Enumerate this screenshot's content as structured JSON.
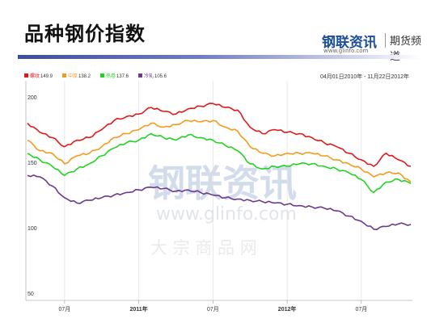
{
  "page": {
    "title": "品种钢价指数"
  },
  "logo": {
    "cn": "钢联资讯",
    "right": "期货频道",
    "url": "www.glinfo.com"
  },
  "watermark": {
    "cn": "钢联资讯",
    "url": "www.glinfo.com",
    "sub": "大 宗 商 品 网"
  },
  "colors": {
    "rule": "#3c4da3",
    "logo": "#1b4f9a"
  },
  "chart_data": {
    "type": "line",
    "date_range": "04月01日2010年 - 11月22日2012年",
    "ylim": [
      50,
      200
    ],
    "y_ticks": [
      200,
      150,
      100,
      50
    ],
    "x_ticks": [
      "07月",
      "2011年",
      "07月",
      "2012年",
      "07月"
    ],
    "x_domain": [
      "2010-04",
      "2012-11"
    ],
    "grid": "vertical",
    "legend_position": "top-left",
    "series": [
      {
        "name": "螺纹",
        "last": "149.9",
        "color": "#e01a1a",
        "x": [
          "2010-04",
          "2010-05",
          "2010-06",
          "2010-07",
          "2010-08",
          "2010-09",
          "2010-10",
          "2010-11",
          "2010-12",
          "2011-01",
          "2011-02",
          "2011-03",
          "2011-04",
          "2011-05",
          "2011-06",
          "2011-07",
          "2011-08",
          "2011-09",
          "2011-10",
          "2011-11",
          "2011-12",
          "2012-01",
          "2012-02",
          "2012-03",
          "2012-04",
          "2012-05",
          "2012-06",
          "2012-07",
          "2012-08",
          "2012-09",
          "2012-10",
          "2012-11"
        ],
        "values": [
          183,
          176,
          172,
          165,
          170,
          172,
          178,
          185,
          188,
          190,
          195,
          192,
          190,
          194,
          196,
          198,
          195,
          193,
          180,
          175,
          178,
          176,
          175,
          172,
          168,
          165,
          160,
          155,
          150,
          160,
          155,
          150
        ]
      },
      {
        "name": "中厚",
        "last": "138.2",
        "color": "#f39b1c",
        "x": [
          "2010-04",
          "2010-05",
          "2010-06",
          "2010-07",
          "2010-08",
          "2010-09",
          "2010-10",
          "2010-11",
          "2010-12",
          "2011-01",
          "2011-02",
          "2011-03",
          "2011-04",
          "2011-05",
          "2011-06",
          "2011-07",
          "2011-08",
          "2011-09",
          "2011-10",
          "2011-11",
          "2011-12",
          "2012-01",
          "2012-02",
          "2012-03",
          "2012-04",
          "2012-05",
          "2012-06",
          "2012-07",
          "2012-08",
          "2012-09",
          "2012-10",
          "2012-11"
        ],
        "values": [
          170,
          162,
          160,
          152,
          158,
          160,
          165,
          172,
          175,
          178,
          183,
          180,
          182,
          185,
          184,
          185,
          180,
          177,
          165,
          160,
          158,
          160,
          160,
          160,
          158,
          155,
          152,
          148,
          142,
          145,
          145,
          138
        ]
      },
      {
        "name": "热卷",
        "last": "137.6",
        "color": "#22d322",
        "x": [
          "2010-04",
          "2010-05",
          "2010-06",
          "2010-07",
          "2010-08",
          "2010-09",
          "2010-10",
          "2010-11",
          "2010-12",
          "2011-01",
          "2011-02",
          "2011-03",
          "2011-04",
          "2011-05",
          "2011-06",
          "2011-07",
          "2011-08",
          "2011-09",
          "2011-10",
          "2011-11",
          "2011-12",
          "2012-01",
          "2012-02",
          "2012-03",
          "2012-04",
          "2012-05",
          "2012-06",
          "2012-07",
          "2012-08",
          "2012-09",
          "2012-10",
          "2012-11"
        ],
        "values": [
          160,
          155,
          150,
          143,
          148,
          152,
          158,
          164,
          168,
          170,
          175,
          172,
          170,
          174,
          172,
          170,
          166,
          162,
          152,
          148,
          150,
          150,
          152,
          152,
          150,
          148,
          145,
          140,
          130,
          138,
          140,
          137
        ]
      },
      {
        "name": "冷轧",
        "last": "105.6",
        "color": "#6b3a8c",
        "x": [
          "2010-04",
          "2010-05",
          "2010-06",
          "2010-07",
          "2010-08",
          "2010-09",
          "2010-10",
          "2010-11",
          "2010-12",
          "2011-01",
          "2011-02",
          "2011-03",
          "2011-04",
          "2011-05",
          "2011-06",
          "2011-07",
          "2011-08",
          "2011-09",
          "2011-10",
          "2011-11",
          "2011-12",
          "2012-01",
          "2012-02",
          "2012-03",
          "2012-04",
          "2012-05",
          "2012-06",
          "2012-07",
          "2012-08",
          "2012-09",
          "2012-10",
          "2012-11"
        ],
        "values": [
          143,
          142,
          135,
          126,
          122,
          124,
          126,
          128,
          130,
          132,
          134,
          133,
          131,
          132,
          130,
          128,
          126,
          125,
          124,
          123,
          122,
          121,
          120,
          119,
          118,
          116,
          112,
          108,
          102,
          104,
          106,
          105.6
        ]
      }
    ]
  }
}
